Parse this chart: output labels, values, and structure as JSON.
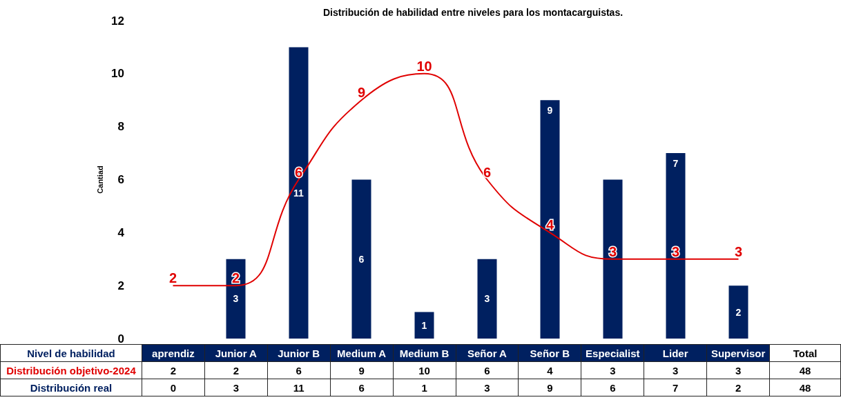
{
  "chart_data": {
    "type": "bar",
    "title": "Distribución de habilidad entre niveles para los montacarguistas.",
    "xlabel": "Nivel de habilidad",
    "ylabel": "Cantiad",
    "categories": [
      "aprendiz",
      "Junior A",
      "Junior B",
      "Medium A",
      "Medium B",
      "Señor A",
      "Señor B",
      "Especialist",
      "Lider",
      "Supervisor"
    ],
    "series": [
      {
        "name": "Distribución objetivo-2024",
        "type": "line",
        "color": "#e00000",
        "values": [
          2,
          2,
          6,
          9,
          10,
          6,
          4,
          3,
          3,
          3
        ],
        "value_labels": [
          "2",
          "2",
          "6",
          "9",
          "10",
          "6",
          "4",
          "3",
          "3",
          "3"
        ]
      },
      {
        "name": "Distribución real",
        "color": "#002060",
        "values": [
          0,
          3,
          11,
          6,
          1,
          3,
          9,
          6,
          7,
          2
        ],
        "value_labels": [
          null,
          "3",
          "11",
          "6",
          "1",
          "3",
          "9",
          null,
          "7",
          "2"
        ]
      }
    ],
    "annotations": [
      "Total",
      "2",
      "2",
      "6",
      "9",
      "10",
      "6",
      "4",
      "3",
      "3",
      "3",
      "48",
      "0",
      "3",
      "11",
      "6",
      "1",
      "3",
      "9",
      "6",
      "7",
      "2",
      "48"
    ],
    "ylim": [
      0,
      12
    ],
    "yticks": [
      0,
      2,
      4,
      6,
      8,
      10,
      12
    ],
    "grid": false,
    "legend": false,
    "marker": "none"
  }
}
